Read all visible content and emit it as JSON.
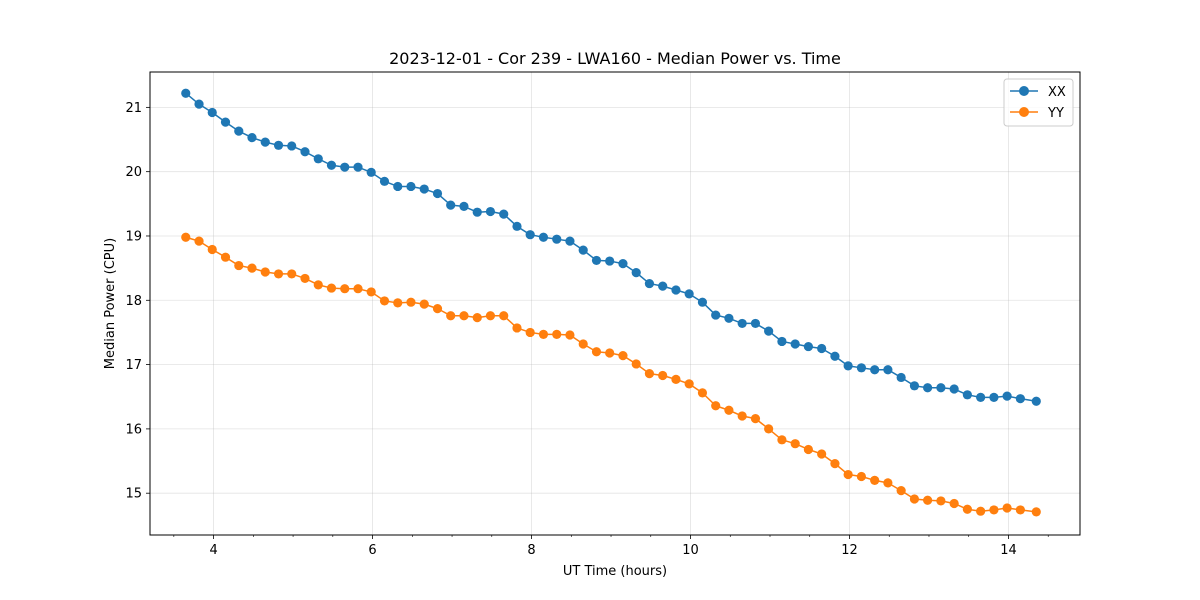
{
  "chart_data": {
    "type": "line",
    "title": "2023-12-01 - Cor 239 - LWA160 - Median Power vs. Time",
    "xlabel": "UT Time (hours)",
    "ylabel": "Median Power (CPU)",
    "xlim": [
      3.2,
      14.9
    ],
    "ylim": [
      14.35,
      21.55
    ],
    "x_ticks": [
      4,
      6,
      8,
      10,
      12,
      14
    ],
    "x_tick_labels": [
      "4",
      "6",
      "8",
      "10",
      "12",
      "14"
    ],
    "x_minor_step": 0.5,
    "y_ticks": [
      15,
      16,
      17,
      18,
      19,
      20,
      21
    ],
    "y_tick_labels": [
      "15",
      "16",
      "17",
      "18",
      "19",
      "20",
      "21"
    ],
    "grid": true,
    "legend_position": "top-right",
    "x": [
      3.65,
      3.817,
      3.983,
      4.15,
      4.317,
      4.483,
      4.65,
      4.817,
      4.983,
      5.15,
      5.317,
      5.483,
      5.65,
      5.817,
      5.983,
      6.15,
      6.317,
      6.483,
      6.65,
      6.817,
      6.983,
      7.15,
      7.317,
      7.483,
      7.65,
      7.817,
      7.983,
      8.15,
      8.317,
      8.483,
      8.65,
      8.817,
      8.983,
      9.15,
      9.317,
      9.483,
      9.65,
      9.817,
      9.983,
      10.15,
      10.317,
      10.483,
      10.65,
      10.817,
      10.983,
      11.15,
      11.317,
      11.483,
      11.65,
      11.817,
      11.983,
      12.15,
      12.317,
      12.483,
      12.65,
      12.817,
      12.983,
      13.15,
      13.317,
      13.483,
      13.65,
      13.817,
      13.983,
      14.15,
      14.35
    ],
    "series": [
      {
        "name": "XX",
        "color": "#1f77b4",
        "values": [
          21.22,
          21.05,
          20.92,
          20.77,
          20.63,
          20.53,
          20.46,
          20.41,
          20.4,
          20.31,
          20.2,
          20.1,
          20.07,
          20.07,
          19.99,
          19.85,
          19.77,
          19.77,
          19.73,
          19.66,
          19.48,
          19.46,
          19.37,
          19.38,
          19.34,
          19.15,
          19.02,
          18.98,
          18.95,
          18.92,
          18.78,
          18.62,
          18.61,
          18.57,
          18.43,
          18.26,
          18.22,
          18.16,
          18.1,
          17.97,
          17.77,
          17.72,
          17.64,
          17.64,
          17.52,
          17.36,
          17.32,
          17.28,
          17.25,
          17.13,
          16.98,
          16.95,
          16.92,
          16.92,
          16.8,
          16.67,
          16.64,
          16.64,
          16.62,
          16.53,
          16.49,
          16.49,
          16.51,
          16.47,
          16.43
        ]
      },
      {
        "name": "YY",
        "color": "#ff7f0e",
        "values": [
          18.98,
          18.92,
          18.79,
          18.67,
          18.54,
          18.5,
          18.44,
          18.41,
          18.41,
          18.34,
          18.24,
          18.19,
          18.18,
          18.18,
          18.13,
          17.99,
          17.96,
          17.97,
          17.94,
          17.87,
          17.76,
          17.76,
          17.73,
          17.76,
          17.76,
          17.57,
          17.5,
          17.47,
          17.47,
          17.46,
          17.32,
          17.2,
          17.18,
          17.14,
          17.01,
          16.86,
          16.83,
          16.77,
          16.7,
          16.56,
          16.36,
          16.29,
          16.2,
          16.16,
          16.0,
          15.83,
          15.77,
          15.68,
          15.61,
          15.46,
          15.29,
          15.26,
          15.2,
          15.16,
          15.04,
          14.91,
          14.89,
          14.88,
          14.84,
          14.75,
          14.72,
          14.74,
          14.77,
          14.74,
          14.71
        ]
      }
    ]
  }
}
